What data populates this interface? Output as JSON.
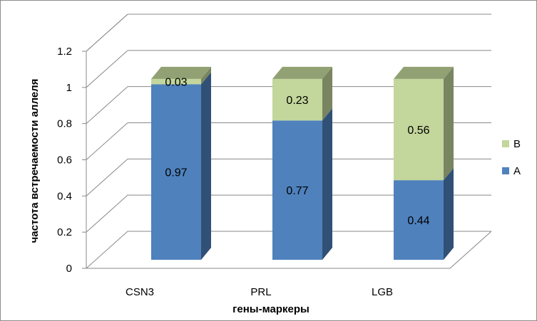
{
  "chart_data": {
    "type": "bar",
    "stacked": true,
    "three_d": true,
    "categories": [
      "CSN3",
      "PRL",
      "LGB"
    ],
    "series": [
      {
        "name": "A",
        "values": [
          0.97,
          0.77,
          0.44
        ],
        "data_labels": [
          "0.97",
          "0.77",
          "0.44"
        ],
        "color": "#4f81bd"
      },
      {
        "name": "B",
        "values": [
          0.03,
          0.23,
          0.56
        ],
        "data_labels": [
          "0.03",
          "0.23",
          "0.56"
        ],
        "color": "#c3d69b"
      }
    ],
    "title": "",
    "xlabel": "гены-маркеры",
    "ylabel": "частота встречаемости  аллеля",
    "ylim": [
      0,
      1.2
    ],
    "yticks": [
      "0",
      "0.2",
      "0.4",
      "0.6",
      "0.8",
      "1",
      "1.2"
    ],
    "grid": true,
    "legend_position": "right"
  }
}
